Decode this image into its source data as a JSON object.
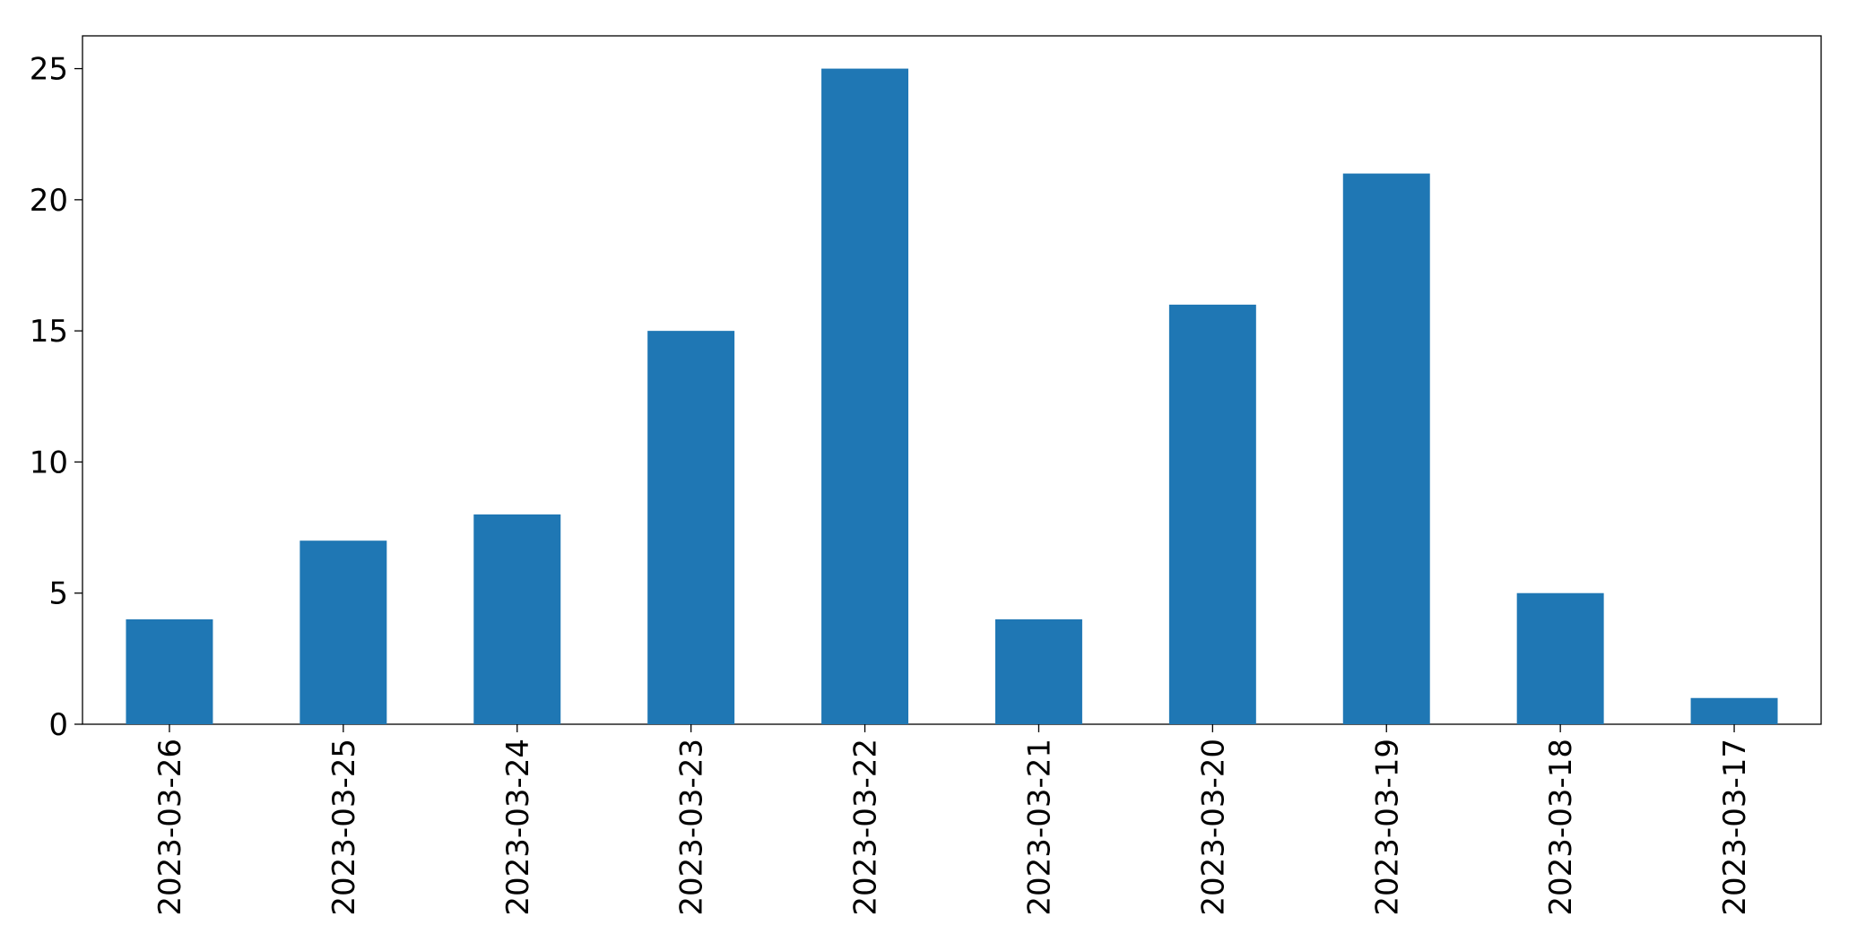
{
  "chart_data": {
    "type": "bar",
    "categories": [
      "2023-03-26",
      "2023-03-25",
      "2023-03-24",
      "2023-03-23",
      "2023-03-22",
      "2023-03-21",
      "2023-03-20",
      "2023-03-19",
      "2023-03-18",
      "2023-03-17"
    ],
    "values": [
      4,
      7,
      8,
      15,
      25,
      4,
      16,
      21,
      5,
      1
    ],
    "color": "#1f77b4",
    "ylim": [
      0,
      26.25
    ],
    "yticks": [
      0,
      5,
      10,
      15,
      20,
      25
    ],
    "grid": false
  }
}
